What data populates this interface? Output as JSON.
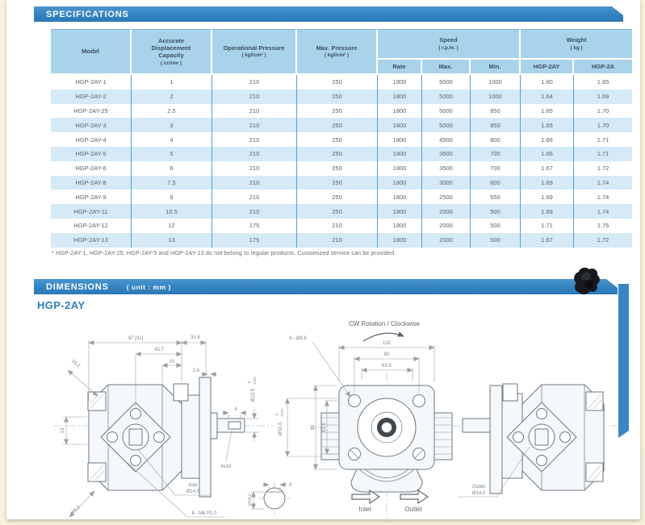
{
  "page": {
    "spec_banner": "SPECIFICATIONS",
    "dim_banner": "DIMENSIONS",
    "dim_unit": "( unit : mm )",
    "series_label": "HGP-2AY",
    "footnote": "* HGP-2AY-1, HGP-2AY-25, HGP-2AY-5 and HGP-2AY-13 do not belong to regular products.  Customized service can be provided.",
    "accent_blue": "#3181c1",
    "header_blue": "#a9d3eb",
    "row_alt_blue": "#d5e9f6"
  },
  "table": {
    "headers": {
      "model": "Model",
      "capacity": "Accurate Displacement Capacity",
      "capacity_unit": "( cc/rev )",
      "op_pressure": "Operational Pressure",
      "op_pressure_unit": "( kgf/cm² )",
      "max_pressure": "Max. Pressure",
      "max_pressure_unit": "( kgf/cm² )",
      "speed": "Speed",
      "speed_unit": "( r.p.m. )",
      "weight": "Weight",
      "weight_unit": "( kg )",
      "rate": "Rate",
      "max": "Max.",
      "min": "Min.",
      "w_col1": "HGP-2AY",
      "w_col2": "HGP-2A"
    },
    "rows": [
      [
        "HGP-2AY-1",
        "1",
        "210",
        "250",
        "1800",
        "5000",
        "1000",
        "1.60",
        "1.65"
      ],
      [
        "HGP-2AY-2",
        "2",
        "210",
        "250",
        "1800",
        "5000",
        "1000",
        "1.64",
        "1.69"
      ],
      [
        "HGP-2AY-25",
        "2.5",
        "210",
        "250",
        "1800",
        "5000",
        "850",
        "1.65",
        "1.70"
      ],
      [
        "HGP-2AY-3",
        "3",
        "210",
        "250",
        "1800",
        "5000",
        "850",
        "1.65",
        "1.70"
      ],
      [
        "HGP-2AY-4",
        "4",
        "210",
        "250",
        "1800",
        "4500",
        "800",
        "1.66",
        "1.71"
      ],
      [
        "HGP-2AY-5",
        "5",
        "210",
        "250",
        "1800",
        "3500",
        "700",
        "1.66",
        "1.71"
      ],
      [
        "HGP-2AY-6",
        "6",
        "210",
        "250",
        "1800",
        "3500",
        "700",
        "1.67",
        "1.72"
      ],
      [
        "HGP-2AY-8",
        "7.5",
        "210",
        "250",
        "1800",
        "3000",
        "600",
        "1.69",
        "1.74"
      ],
      [
        "HGP-2AY-9",
        "9",
        "210",
        "250",
        "1800",
        "2500",
        "550",
        "1.69",
        "1.74"
      ],
      [
        "HGP-2AY-11",
        "10.5",
        "210",
        "250",
        "1800",
        "2000",
        "500",
        "1.69",
        "1.74"
      ],
      [
        "HGP-2AY-12",
        "12",
        "175",
        "210",
        "1800",
        "2000",
        "500",
        "1.71",
        "1.76"
      ],
      [
        "HGP-2AY-13",
        "13",
        "175",
        "210",
        "1800",
        "2000",
        "500",
        "1.67",
        "1.72"
      ]
    ]
  },
  "drawing": {
    "rotation_label": "CW Rotation / Clockwise",
    "left_view": {
      "overall_len": "97 [91]",
      "shaft_len": "33.8",
      "mid_len": "43.7",
      "step_len": "10",
      "plate_thk": "3.8",
      "chamfer_tl": "25.2",
      "port_height": "13",
      "chamfer_bl": "45.2",
      "shaft_dia": "Ø12.5",
      "shaft_dia_tol_top": "0",
      "shaft_dia_tol_bot": "-0.02",
      "pilot_dia": "Ø50.8",
      "pilot_dia_tol_top": "0",
      "pilot_dia_tol_bot": "-0.05",
      "key_width": "4",
      "key_spec": "4x16",
      "inlet_title": "Inlet",
      "inlet_dia": "Ø14.5",
      "thread_spec": "8 - M6 P1.0"
    },
    "front_view": {
      "bolt_holes": "4 - Ø8.8",
      "width_overall": "102",
      "bolt_spacing_h": "80",
      "port_spacing_h": "63.5",
      "height_overall": "80",
      "bolt_spacing_v": "63.5",
      "inlet_label": "Inlet",
      "outlet_label": "Outlet"
    },
    "right_view": {
      "outlet_title": "Outlet",
      "outlet_dia": "Ø14.5"
    },
    "key_detail": {
      "width": "4",
      "height": "14±0.2"
    }
  }
}
